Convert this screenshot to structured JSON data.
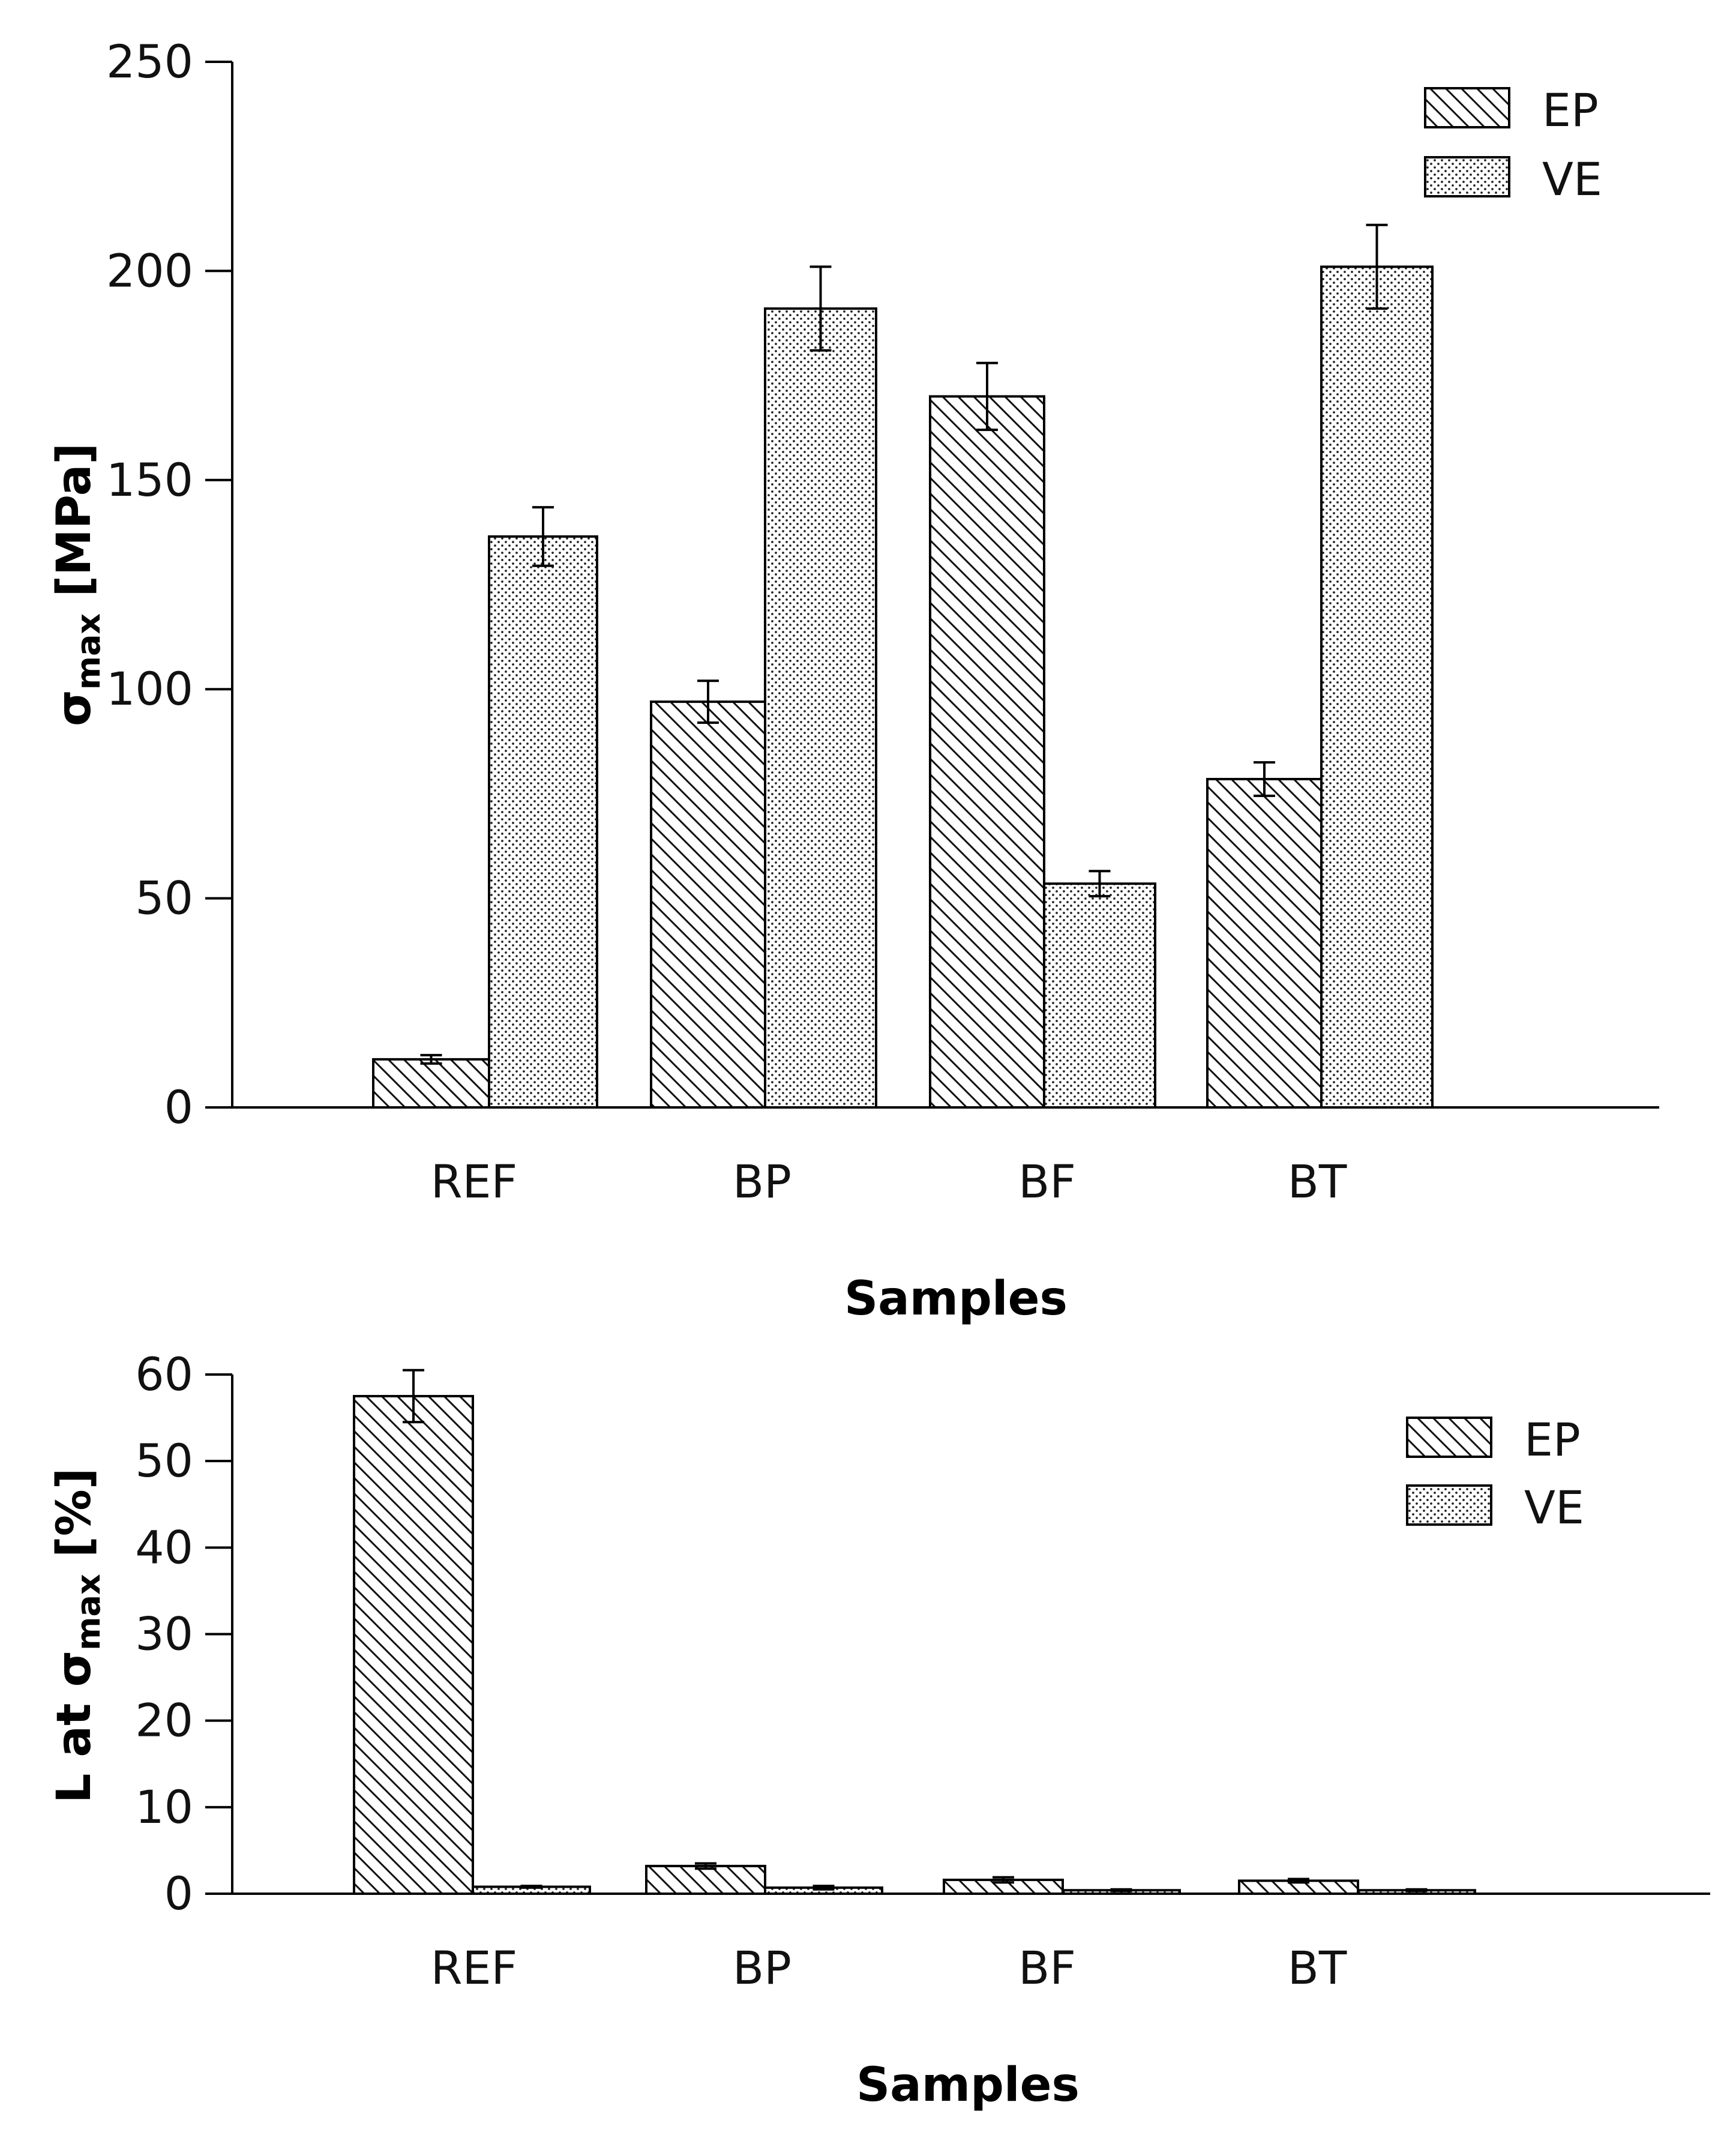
{
  "chart_data": [
    {
      "type": "bar",
      "categories": [
        "REF",
        "BP",
        "BF",
        "BT"
      ],
      "series": [
        {
          "name": "EP",
          "values": [
            11.5,
            97,
            170,
            78.5
          ],
          "errors": [
            1,
            5,
            8,
            4
          ]
        },
        {
          "name": "VE",
          "values": [
            136.5,
            191,
            53.5,
            201
          ],
          "errors": [
            7,
            10,
            3,
            10
          ]
        }
      ],
      "xlabel": "Samples",
      "ylabel": "σmax [MPa]",
      "ylabel_parts": {
        "sym": "σ",
        "sub": "max",
        "rest": " [MPa]"
      },
      "ylim": [
        0,
        250
      ],
      "yticks": [
        "0",
        "50",
        "100",
        "150",
        "200",
        "250"
      ],
      "grid": false,
      "legend": "top-right"
    },
    {
      "type": "bar",
      "categories": [
        "REF",
        "BP",
        "BF",
        "BT"
      ],
      "series": [
        {
          "name": "EP",
          "values": [
            57.5,
            3.2,
            1.6,
            1.5
          ],
          "errors": [
            3,
            0.3,
            0.3,
            0.2
          ]
        },
        {
          "name": "VE",
          "values": [
            0.8,
            0.7,
            0.4,
            0.4
          ],
          "errors": [
            0.1,
            0.2,
            0.1,
            0.1
          ]
        }
      ],
      "xlabel": "Samples",
      "ylabel": "L at σmax [%]",
      "ylabel_parts": {
        "pre": "L at ",
        "sym": "σ",
        "sub": "max",
        "rest": " [%]"
      },
      "ylim": [
        0,
        60
      ],
      "yticks": [
        "0",
        "10",
        "20",
        "30",
        "40",
        "50",
        "60"
      ],
      "grid": false,
      "legend": "top-right"
    }
  ]
}
